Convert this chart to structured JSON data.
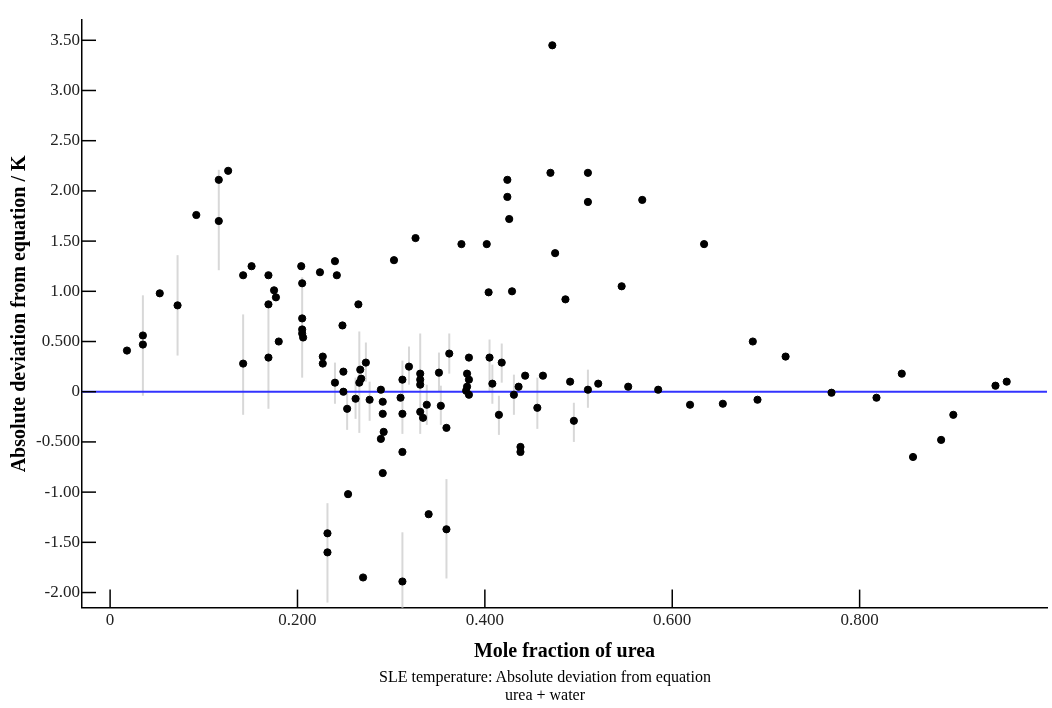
{
  "chart_data": {
    "type": "scatter",
    "xlabel": "Mole fraction of urea",
    "ylabel": "Absolute deviation from equation / K",
    "annotations": [
      "SLE temperature: Absolute deviation from equation",
      "urea + water"
    ],
    "xlim": [
      -0.03,
      1.0
    ],
    "xticks": [
      0,
      {
        "value": 0.2,
        "label": "0.200"
      },
      {
        "value": 0.4,
        "label": "0.400"
      },
      {
        "value": 0.6,
        "label": "0.600"
      },
      {
        "value": 0.8,
        "label": "0.800"
      }
    ],
    "ylim": [
      -2.15,
      3.7
    ],
    "yticks": [
      {
        "value": 3.5,
        "label": "3.50"
      },
      {
        "value": 3,
        "label": "3.00"
      },
      {
        "value": 2.5,
        "label": "2.50"
      },
      {
        "value": 2,
        "label": "2.00"
      },
      {
        "value": 1.5,
        "label": "1.50"
      },
      {
        "value": 1,
        "label": "1.00"
      },
      {
        "value": 0.5,
        "label": "0.500"
      },
      0,
      {
        "value": -0.5,
        "label": "-0.500"
      },
      {
        "value": -1,
        "label": "-1.00"
      },
      {
        "value": -1.5,
        "label": "-1.50"
      },
      {
        "value": -2,
        "label": "-2.00"
      }
    ],
    "ref_lines": [
      {
        "axis": "y",
        "value": 0,
        "color": "#3333ff"
      }
    ],
    "marker": "circle",
    "series": [
      {
        "color": "#000000",
        "x": [
          0.018,
          0.035,
          0.035,
          0.053,
          0.072,
          0.092,
          0.116,
          0.116,
          0.126,
          0.142,
          0.142,
          0.151,
          0.169,
          0.169,
          0.169,
          0.175,
          0.177,
          0.18,
          0.204,
          0.205,
          0.205,
          0.205,
          0.205,
          0.206,
          0.224,
          0.227,
          0.227,
          0.24,
          0.242,
          0.248,
          0.265,
          0.24,
          0.249,
          0.249,
          0.253,
          0.262,
          0.266,
          0.267,
          0.268,
          0.273,
          0.277,
          0.289,
          0.291,
          0.291,
          0.292,
          0.289,
          0.291,
          0.254,
          0.232,
          0.232,
          0.27,
          0.312,
          0.312,
          0.31,
          0.312,
          0.312,
          0.319,
          0.331,
          0.331,
          0.331,
          0.331,
          0.334,
          0.338,
          0.34,
          0.351,
          0.353,
          0.359,
          0.359,
          0.362,
          0.383,
          0.381,
          0.383,
          0.381,
          0.38,
          0.383,
          0.405,
          0.408,
          0.415,
          0.418,
          0.431,
          0.436,
          0.443,
          0.438,
          0.438,
          0.472,
          0.424,
          0.424,
          0.426,
          0.47,
          0.51,
          0.51,
          0.568,
          0.326,
          0.303,
          0.375,
          0.402,
          0.475,
          0.634,
          0.404,
          0.429,
          0.486,
          0.546,
          0.462,
          0.491,
          0.51,
          0.521,
          0.553,
          0.585,
          0.456,
          0.495,
          0.619,
          0.654,
          0.686,
          0.691,
          0.721,
          0.77,
          0.818,
          0.845,
          0.857,
          0.887,
          0.9,
          0.945,
          0.957
        ],
        "values": [
          0.41,
          0.56,
          0.47,
          0.98,
          0.86,
          1.76,
          2.11,
          1.7,
          2.2,
          1.16,
          0.28,
          1.25,
          1.16,
          0.87,
          0.34,
          1.01,
          0.94,
          0.5,
          1.25,
          1.08,
          0.73,
          0.62,
          0.58,
          0.54,
          1.19,
          0.35,
          0.28,
          1.3,
          1.16,
          0.66,
          0.87,
          0.09,
          0.2,
          0.0,
          -0.17,
          -0.07,
          0.09,
          0.22,
          0.13,
          0.29,
          -0.08,
          0.02,
          -0.1,
          -0.22,
          -0.4,
          -0.47,
          -0.81,
          -1.02,
          -1.41,
          -1.6,
          -1.85,
          -1.89,
          0.12,
          -0.06,
          -0.22,
          -0.6,
          0.25,
          0.18,
          0.12,
          0.07,
          -0.2,
          -0.26,
          -0.13,
          -1.22,
          0.19,
          -0.14,
          -0.36,
          -1.37,
          0.38,
          0.34,
          0.18,
          0.12,
          0.05,
          0.01,
          -0.03,
          0.34,
          0.08,
          -0.23,
          0.29,
          -0.03,
          0.05,
          0.16,
          -0.55,
          -0.6,
          3.45,
          2.11,
          1.94,
          1.72,
          2.18,
          2.18,
          1.89,
          1.91,
          1.53,
          1.31,
          1.47,
          1.47,
          1.38,
          1.47,
          0.99,
          1.0,
          0.92,
          1.05,
          0.16,
          0.1,
          0.02,
          0.08,
          0.05,
          0.02,
          -0.16,
          -0.29,
          -0.13,
          -0.12,
          0.5,
          -0.08,
          0.35,
          -0.01,
          -0.06,
          0.18,
          -0.65,
          -0.48,
          -0.23,
          0.06,
          0.1
        ],
        "errors": [
          null,
          [
            -0.04,
            0.96
          ],
          null,
          null,
          [
            0.36,
            1.36
          ],
          null,
          [
            1.21,
            2.21
          ],
          null,
          null,
          null,
          [
            -0.23,
            0.77
          ],
          null,
          null,
          null,
          [
            -0.17,
            0.83
          ],
          null,
          null,
          null,
          null,
          [
            0.14,
            1.14
          ],
          null,
          null,
          null,
          null,
          null,
          null,
          null,
          null,
          null,
          null,
          null,
          [
            -0.12,
            0.29
          ],
          null,
          null,
          [
            -0.38,
            0.0
          ],
          [
            -0.27,
            0.14
          ],
          [
            -0.41,
            0.6
          ],
          null,
          null,
          [
            0.1,
            0.49
          ],
          [
            -0.29,
            0.1
          ],
          null,
          null,
          null,
          null,
          null,
          null,
          null,
          [
            -2.1,
            -1.11
          ],
          null,
          null,
          [
            -2.15,
            -1.4
          ],
          [
            -0.42,
            0.31
          ],
          null,
          null,
          null,
          [
            0.07,
            0.45
          ],
          [
            -0.42,
            0.58
          ],
          null,
          null,
          null,
          null,
          [
            -0.33,
            0.07
          ],
          null,
          [
            0.0,
            0.39
          ],
          [
            -0.33,
            0.06
          ],
          null,
          [
            -1.86,
            -0.87
          ],
          [
            0.18,
            0.58
          ],
          null,
          null,
          null,
          null,
          null,
          null,
          [
            0.0,
            0.52
          ],
          [
            -0.12,
            0.27
          ],
          [
            -0.43,
            -0.04
          ],
          [
            0.09,
            0.48
          ],
          [
            -0.23,
            0.17
          ],
          null,
          null,
          null,
          null,
          null,
          null,
          null,
          null,
          null,
          null,
          null,
          null,
          null,
          null,
          null,
          null,
          null,
          null,
          null,
          null,
          null,
          null,
          null,
          null,
          [
            -0.16,
            0.22
          ],
          null,
          null,
          null,
          [
            -0.37,
            0.14
          ],
          [
            -0.5,
            -0.11
          ],
          null,
          null,
          null,
          null,
          null,
          null,
          null,
          null,
          null,
          null,
          null,
          null,
          null
        ]
      }
    ]
  }
}
